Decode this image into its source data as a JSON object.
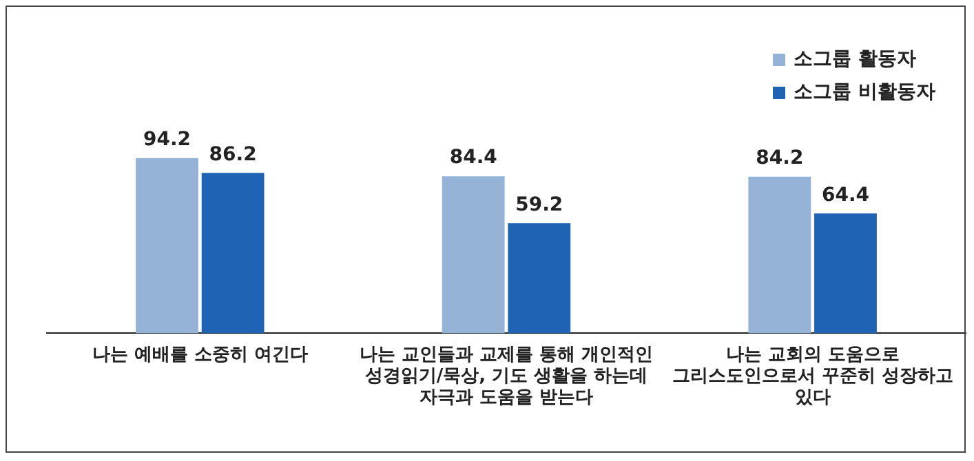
{
  "chart_data": {
    "type": "bar",
    "categories": [
      "나는 예배를 소중히 여긴다",
      "나는 교인들과 교제를 통해 개인적인 성경읽기/묵상, 기도 생활을 하는데 자극과 도움을 받는다",
      "나는 교회의 도움으로 그리스도인으로서 꾸준히 성장하고 있다"
    ],
    "series": [
      {
        "name": "소그룹 활동자",
        "color": "#95b3d7",
        "values": [
          94.2,
          84.4,
          84.2
        ]
      },
      {
        "name": "소그룹 비활동자",
        "color": "#1f64b4",
        "values": [
          86.2,
          59.2,
          64.4
        ]
      }
    ],
    "data_labels": true,
    "legend": "top right",
    "grid": false
  }
}
